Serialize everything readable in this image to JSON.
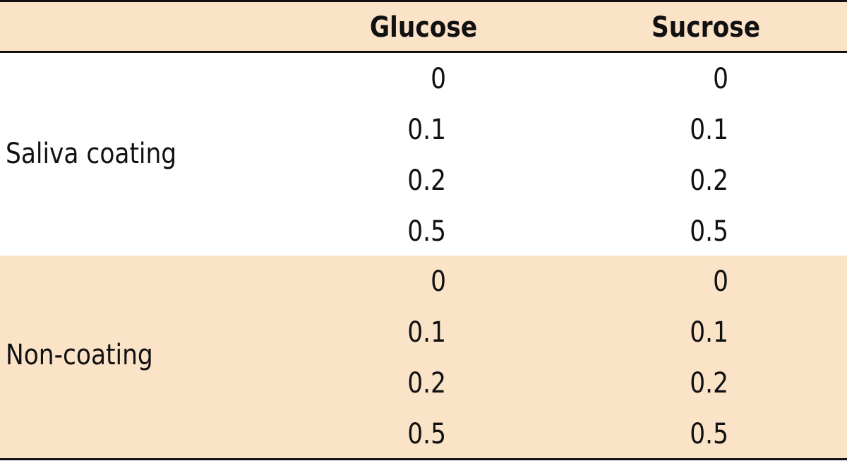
{
  "table": {
    "headers": [
      "",
      "Glucose",
      "Sucrose"
    ],
    "groups": [
      {
        "label": "Saliva coating",
        "rows": [
          [
            "0",
            "0"
          ],
          [
            "0.1",
            "0.1"
          ],
          [
            "0.2",
            "0.2"
          ],
          [
            "0.5",
            "0.5"
          ]
        ]
      },
      {
        "label": "Non-coating",
        "rows": [
          [
            "0",
            "0"
          ],
          [
            "0.1",
            "0.1"
          ],
          [
            "0.2",
            "0.2"
          ],
          [
            "0.5",
            "0.5"
          ]
        ]
      }
    ]
  },
  "colors": {
    "header_fill": "#fbe3c8",
    "band_fill": "#fbe3c8",
    "rule": "#111111"
  }
}
